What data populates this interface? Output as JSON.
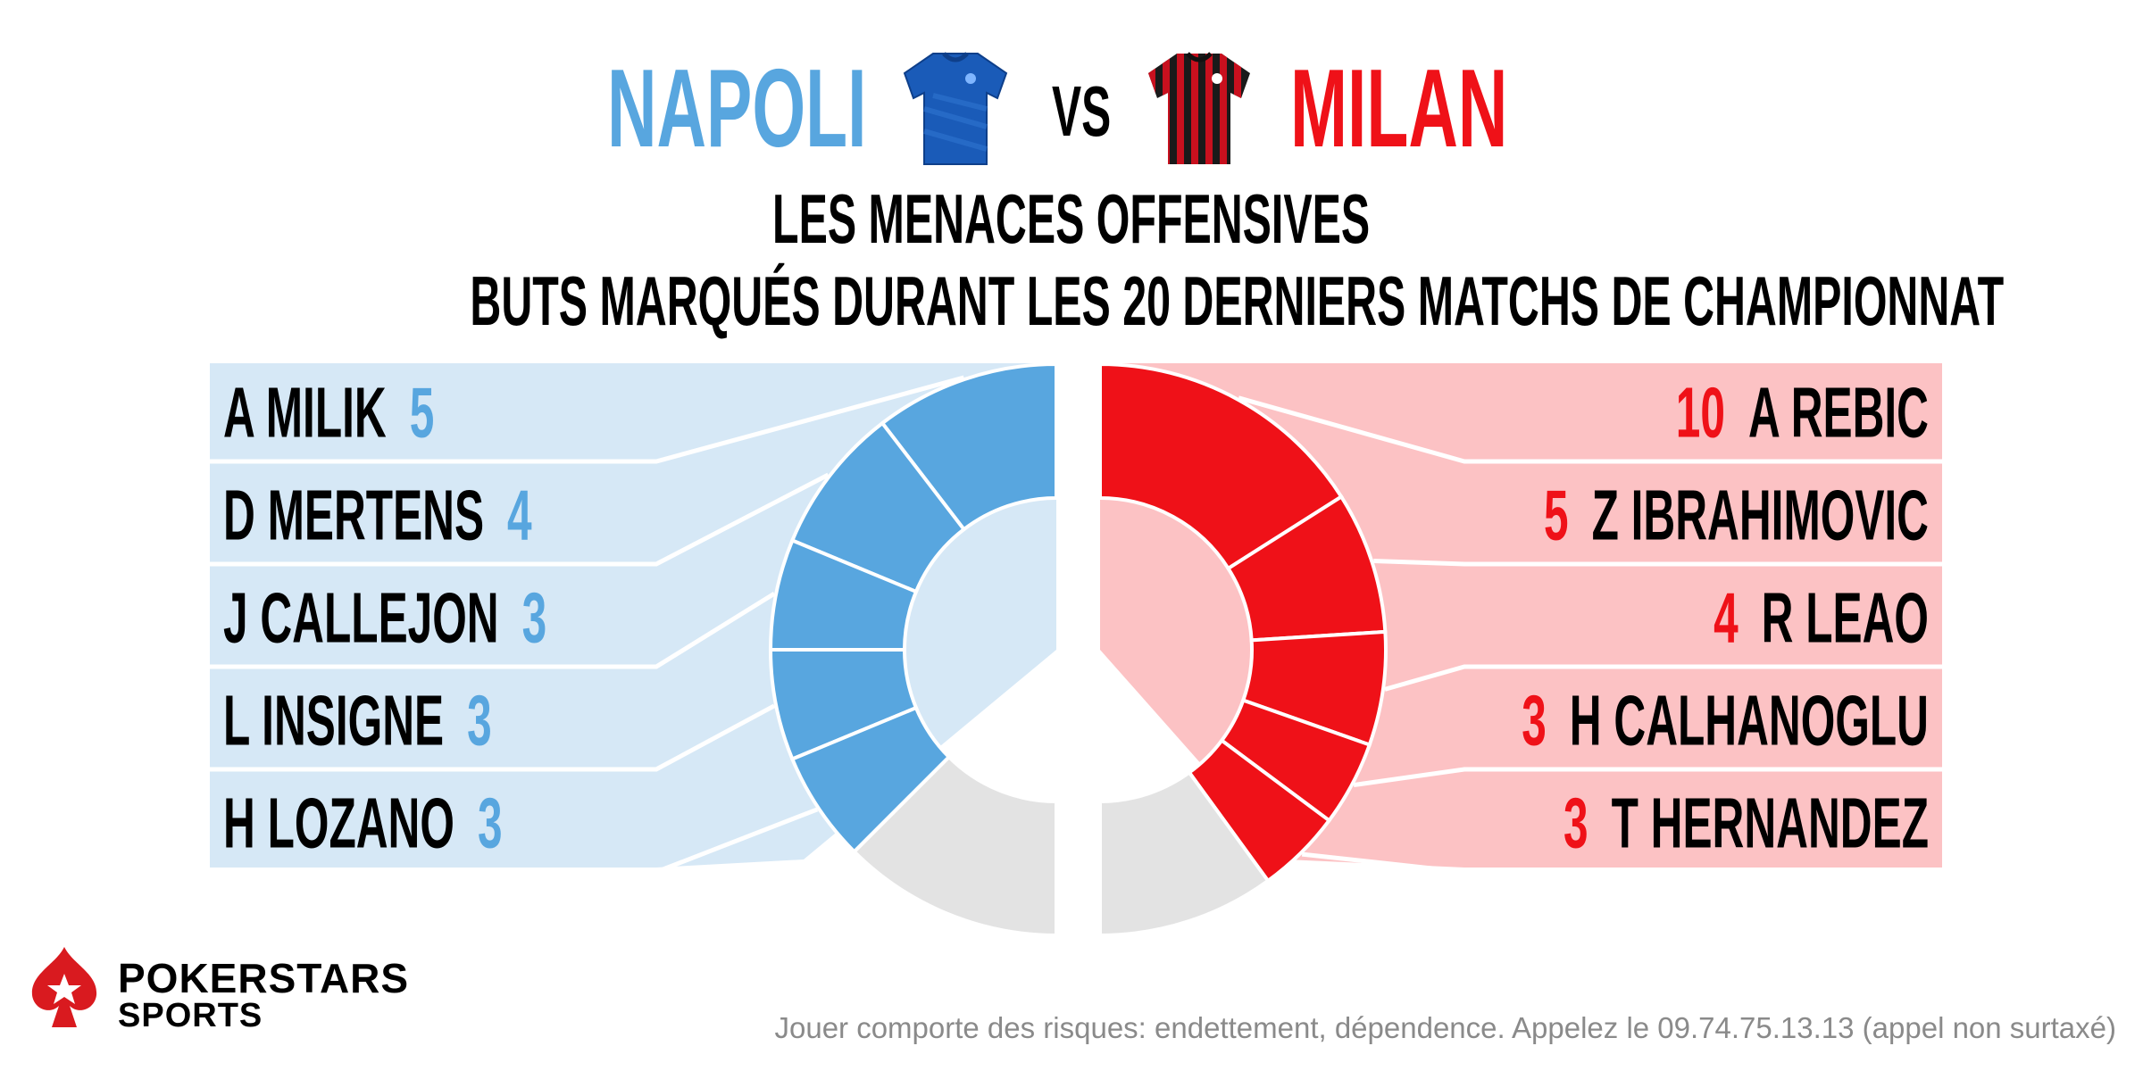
{
  "header": {
    "home_team": "NAPOLI",
    "vs_label": "VS",
    "away_team": "MILAN",
    "subtitle_line1": "LES MENACES OFFENSIVES",
    "subtitle_line2": "BUTS MARQUÉS DURANT LES 20 DERNIERS MATCHS DE CHAMPIONNAT"
  },
  "colors": {
    "home_accent": "#58a6df",
    "home_panel": "#d6e8f6",
    "away_accent": "#ef1118",
    "away_panel": "#fcc2c4",
    "remaining_goals": "#e3e3e3",
    "home_jersey": "#1a5bb8",
    "away_jersey_stripe_a": "#c8101e",
    "away_jersey_stripe_b": "#1a1a1a"
  },
  "chart_data": [
    {
      "type": "pie",
      "team": "NAPOLI",
      "categories": [
        "A MILIK",
        "D MERTENS",
        "J CALLEJON",
        "L INSIGNE",
        "H LOZANO"
      ],
      "values": [
        5,
        4,
        3,
        3,
        3
      ],
      "remaining_share": 0.25
    },
    {
      "type": "pie",
      "team": "MILAN",
      "categories": [
        "A REBIC",
        "Z IBRAHIMOVIC",
        "R LEAO",
        "H CALHANOGLU",
        "T HERNANDEZ"
      ],
      "values": [
        10,
        5,
        4,
        3,
        3
      ],
      "remaining_share": 0.2
    }
  ],
  "logo": {
    "line1": "POKERSTARS",
    "line2": "SPORTS",
    "icon": "spade-star-icon"
  },
  "footer": {
    "disclaimer": "Jouer comporte des risques: endettement, dépendence. Appelez le 09.74.75.13.13 (appel non surtaxé)"
  }
}
